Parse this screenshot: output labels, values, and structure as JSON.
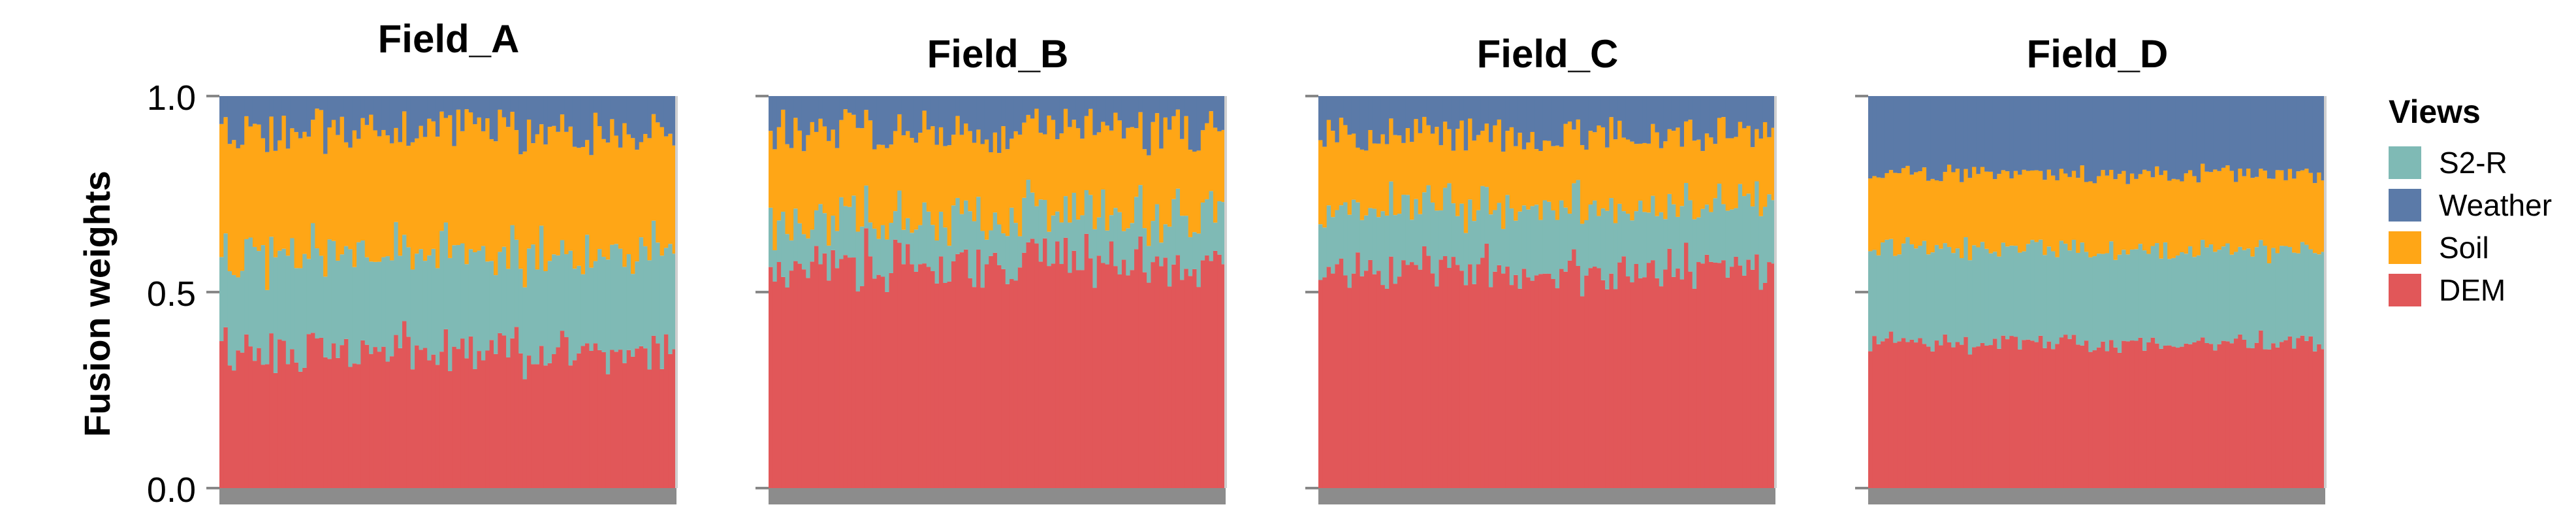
{
  "chart_data": {
    "type": "bar",
    "stacked": true,
    "ylabel": "Fusion weights",
    "ylim": [
      0.0,
      1.0
    ],
    "yticks": [
      0.0,
      0.5,
      1.0
    ],
    "ytick_labels": [
      "0.0",
      "0.5",
      "1.0"
    ],
    "bars_per_panel": 110,
    "legend": {
      "title": "Views",
      "placement": "right",
      "entries": [
        {
          "name": "S2-R",
          "color": "#7fbab5"
        },
        {
          "name": "Weather",
          "color": "#5b7aa8"
        },
        {
          "name": "Soil",
          "color": "#ffa616"
        },
        {
          "name": "DEM",
          "color": "#e15759"
        }
      ]
    },
    "stack_order_bottom_to_top": [
      "DEM",
      "S2-R",
      "Soil",
      "Weather"
    ],
    "colors": {
      "DEM": "#e15759",
      "S2-R": "#7fbab5",
      "Soil": "#ffa616",
      "Weather": "#5b7aa8",
      "axis_strip": "#8c8c8c",
      "axis_line": "#888888"
    },
    "panels": [
      {
        "title": "Field_A",
        "mean_weights": {
          "DEM": 0.35,
          "S2-R": 0.25,
          "Soil": 0.31,
          "Weather": 0.09
        },
        "spread": 0.06
      },
      {
        "title": "Field_B",
        "mean_weights": {
          "DEM": 0.57,
          "S2-R": 0.12,
          "Soil": 0.22,
          "Weather": 0.09
        },
        "spread": 0.06
      },
      {
        "title": "Field_C",
        "mean_weights": {
          "DEM": 0.56,
          "S2-R": 0.16,
          "Soil": 0.18,
          "Weather": 0.1
        },
        "spread": 0.05
      },
      {
        "title": "Field_D",
        "mean_weights": {
          "DEM": 0.37,
          "S2-R": 0.24,
          "Soil": 0.19,
          "Weather": 0.2
        },
        "spread": 0.025
      }
    ]
  }
}
